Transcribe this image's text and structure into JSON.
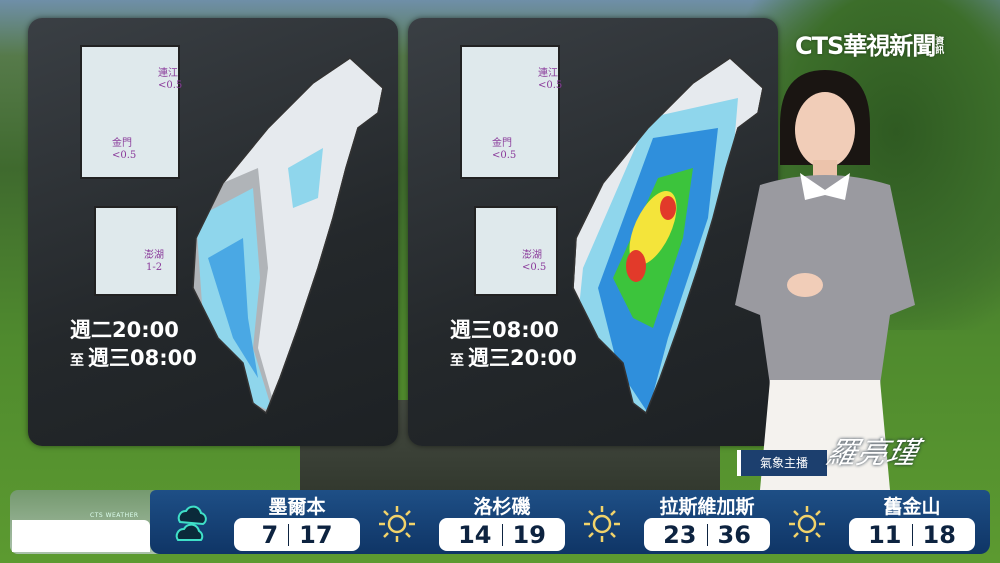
{
  "logo": {
    "text": "CTS華視新聞",
    "sub": "資訊"
  },
  "panels": [
    {
      "period_line1": "週二20:00",
      "prefix2": "至",
      "period_line2": "週三08:00",
      "insets": {
        "matsu": {
          "name": "連江",
          "value": "<0.5"
        },
        "kinmen": {
          "name": "金門",
          "value": "<0.5"
        },
        "penghu": {
          "name": "澎湖",
          "value": "1-2"
        }
      }
    },
    {
      "period_line1": "週三08:00",
      "prefix2": "至",
      "period_line2": "週三20:00",
      "insets": {
        "matsu": {
          "name": "連江",
          "value": "<0.5"
        },
        "kinmen": {
          "name": "金門",
          "value": "<0.5"
        },
        "penghu": {
          "name": "澎湖",
          "value": "<0.5"
        }
      }
    }
  ],
  "presenter": {
    "caption": "氣象主播",
    "signature": "羅亮瑾"
  },
  "ticker": {
    "brand": "CTS WEATHER",
    "cities": [
      {
        "name": "墨爾本",
        "icon": "cloudy-icon",
        "low": "7",
        "high": "17"
      },
      {
        "name": "洛杉磯",
        "icon": "sunny-icon",
        "low": "14",
        "high": "19"
      },
      {
        "name": "拉斯維加斯",
        "icon": "sunny-icon",
        "low": "23",
        "high": "36"
      },
      {
        "name": "舊金山",
        "icon": "sunny-icon",
        "low": "11",
        "high": "18"
      }
    ]
  },
  "colors": {
    "ticker": "#1e4f86",
    "rain_light": "#8fd6ec",
    "rain_blue": "#2f8fdc",
    "rain_green": "#3cc43c",
    "rain_yellow": "#f4e43a",
    "rain_red": "#e23a2a"
  }
}
